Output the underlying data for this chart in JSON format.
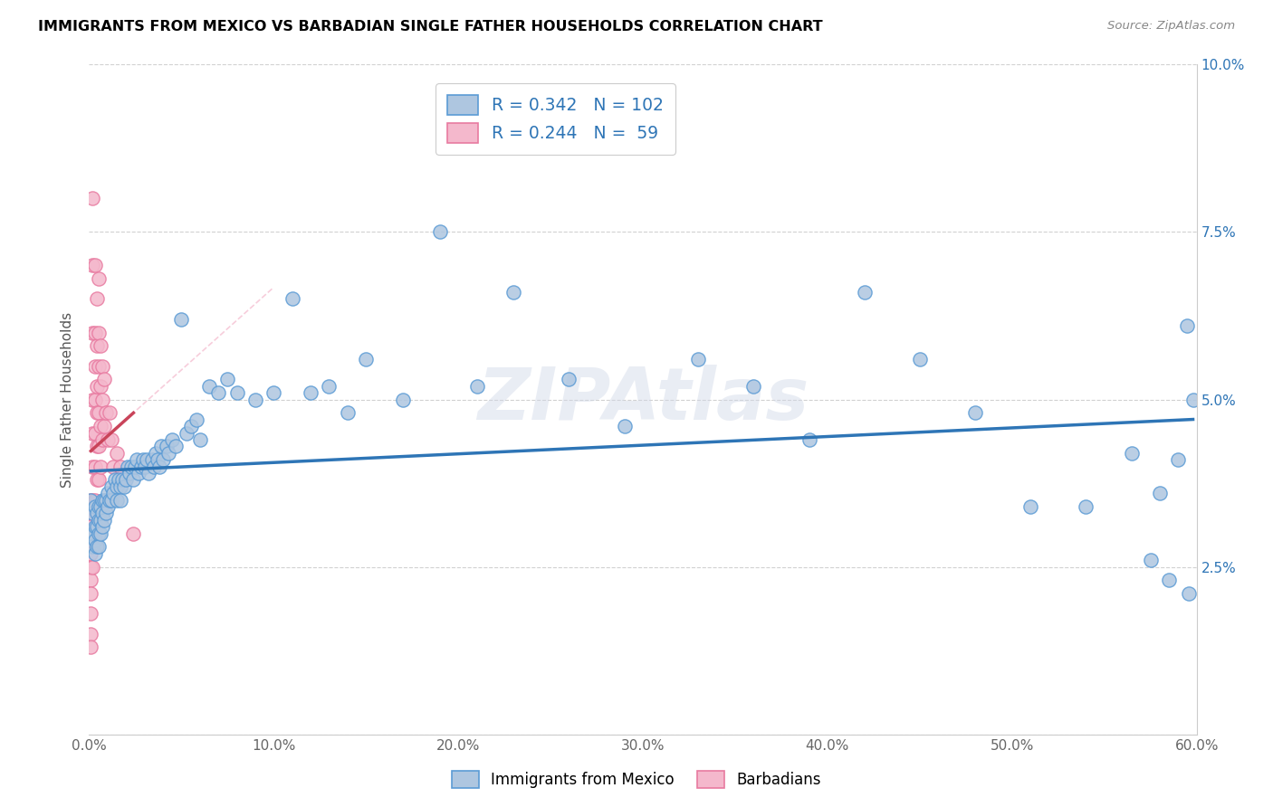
{
  "title": "IMMIGRANTS FROM MEXICO VS BARBADIAN SINGLE FATHER HOUSEHOLDS CORRELATION CHART",
  "source": "Source: ZipAtlas.com",
  "ylabel": "Single Father Households",
  "xlim": [
    0.0,
    0.6
  ],
  "ylim": [
    0.0,
    0.1
  ],
  "xtick_vals": [
    0.0,
    0.1,
    0.2,
    0.3,
    0.4,
    0.5,
    0.6
  ],
  "xtick_labels": [
    "0.0%",
    "10.0%",
    "20.0%",
    "30.0%",
    "40.0%",
    "50.0%",
    "60.0%"
  ],
  "ytick_vals": [
    0.0,
    0.025,
    0.05,
    0.075,
    0.1
  ],
  "ytick_labels_right": [
    "",
    "2.5%",
    "5.0%",
    "7.5%",
    "10.0%"
  ],
  "mexico_color": "#aec6e0",
  "mexico_edge": "#5b9bd5",
  "barbadian_color": "#f4b8cc",
  "barbadian_edge": "#e87aa0",
  "trend_mexico_color": "#2e75b6",
  "trend_barbadian_color": "#c9445a",
  "diag_color": "#f4b8cc",
  "legend_R_mexico": "0.342",
  "legend_N_mexico": "102",
  "legend_R_barbadian": "0.244",
  "legend_N_barbadian": "59",
  "mexico_x": [
    0.001,
    0.001,
    0.002,
    0.002,
    0.002,
    0.003,
    0.003,
    0.003,
    0.003,
    0.004,
    0.004,
    0.004,
    0.005,
    0.005,
    0.005,
    0.005,
    0.006,
    0.006,
    0.006,
    0.007,
    0.007,
    0.007,
    0.008,
    0.008,
    0.009,
    0.009,
    0.01,
    0.01,
    0.011,
    0.012,
    0.012,
    0.013,
    0.014,
    0.015,
    0.015,
    0.016,
    0.017,
    0.017,
    0.018,
    0.019,
    0.02,
    0.021,
    0.022,
    0.023,
    0.024,
    0.025,
    0.026,
    0.027,
    0.028,
    0.029,
    0.03,
    0.031,
    0.032,
    0.034,
    0.035,
    0.036,
    0.037,
    0.038,
    0.039,
    0.04,
    0.042,
    0.043,
    0.045,
    0.047,
    0.05,
    0.053,
    0.055,
    0.058,
    0.06,
    0.065,
    0.07,
    0.075,
    0.08,
    0.09,
    0.1,
    0.11,
    0.12,
    0.13,
    0.14,
    0.15,
    0.17,
    0.19,
    0.21,
    0.23,
    0.26,
    0.29,
    0.33,
    0.36,
    0.39,
    0.42,
    0.45,
    0.48,
    0.51,
    0.54,
    0.565,
    0.575,
    0.58,
    0.585,
    0.59,
    0.595,
    0.596,
    0.598
  ],
  "mexico_y": [
    0.035,
    0.03,
    0.033,
    0.03,
    0.028,
    0.034,
    0.031,
    0.029,
    0.027,
    0.033,
    0.031,
    0.028,
    0.034,
    0.032,
    0.03,
    0.028,
    0.034,
    0.032,
    0.03,
    0.035,
    0.033,
    0.031,
    0.035,
    0.032,
    0.035,
    0.033,
    0.036,
    0.034,
    0.035,
    0.037,
    0.035,
    0.036,
    0.038,
    0.037,
    0.035,
    0.038,
    0.037,
    0.035,
    0.038,
    0.037,
    0.038,
    0.04,
    0.039,
    0.04,
    0.038,
    0.04,
    0.041,
    0.039,
    0.04,
    0.041,
    0.04,
    0.041,
    0.039,
    0.041,
    0.04,
    0.042,
    0.041,
    0.04,
    0.043,
    0.041,
    0.043,
    0.042,
    0.044,
    0.043,
    0.062,
    0.045,
    0.046,
    0.047,
    0.044,
    0.052,
    0.051,
    0.053,
    0.051,
    0.05,
    0.051,
    0.065,
    0.051,
    0.052,
    0.048,
    0.056,
    0.05,
    0.075,
    0.052,
    0.066,
    0.053,
    0.046,
    0.056,
    0.052,
    0.044,
    0.066,
    0.056,
    0.048,
    0.034,
    0.034,
    0.042,
    0.026,
    0.036,
    0.023,
    0.041,
    0.061,
    0.021,
    0.05
  ],
  "barbadian_x": [
    0.001,
    0.001,
    0.001,
    0.001,
    0.001,
    0.001,
    0.001,
    0.001,
    0.001,
    0.001,
    0.001,
    0.002,
    0.002,
    0.002,
    0.002,
    0.002,
    0.002,
    0.002,
    0.002,
    0.002,
    0.003,
    0.003,
    0.003,
    0.003,
    0.003,
    0.003,
    0.003,
    0.003,
    0.004,
    0.004,
    0.004,
    0.004,
    0.004,
    0.004,
    0.004,
    0.005,
    0.005,
    0.005,
    0.005,
    0.005,
    0.005,
    0.006,
    0.006,
    0.006,
    0.006,
    0.007,
    0.007,
    0.007,
    0.008,
    0.008,
    0.009,
    0.01,
    0.011,
    0.012,
    0.013,
    0.015,
    0.017,
    0.019,
    0.024
  ],
  "barbadian_y": [
    0.035,
    0.033,
    0.031,
    0.029,
    0.027,
    0.025,
    0.023,
    0.021,
    0.018,
    0.015,
    0.013,
    0.08,
    0.07,
    0.06,
    0.05,
    0.045,
    0.04,
    0.035,
    0.03,
    0.025,
    0.07,
    0.06,
    0.055,
    0.05,
    0.045,
    0.04,
    0.035,
    0.03,
    0.065,
    0.058,
    0.052,
    0.048,
    0.043,
    0.038,
    0.033,
    0.068,
    0.06,
    0.055,
    0.048,
    0.043,
    0.038,
    0.058,
    0.052,
    0.046,
    0.04,
    0.055,
    0.05,
    0.044,
    0.053,
    0.046,
    0.048,
    0.044,
    0.048,
    0.044,
    0.04,
    0.042,
    0.04,
    0.038,
    0.03
  ]
}
